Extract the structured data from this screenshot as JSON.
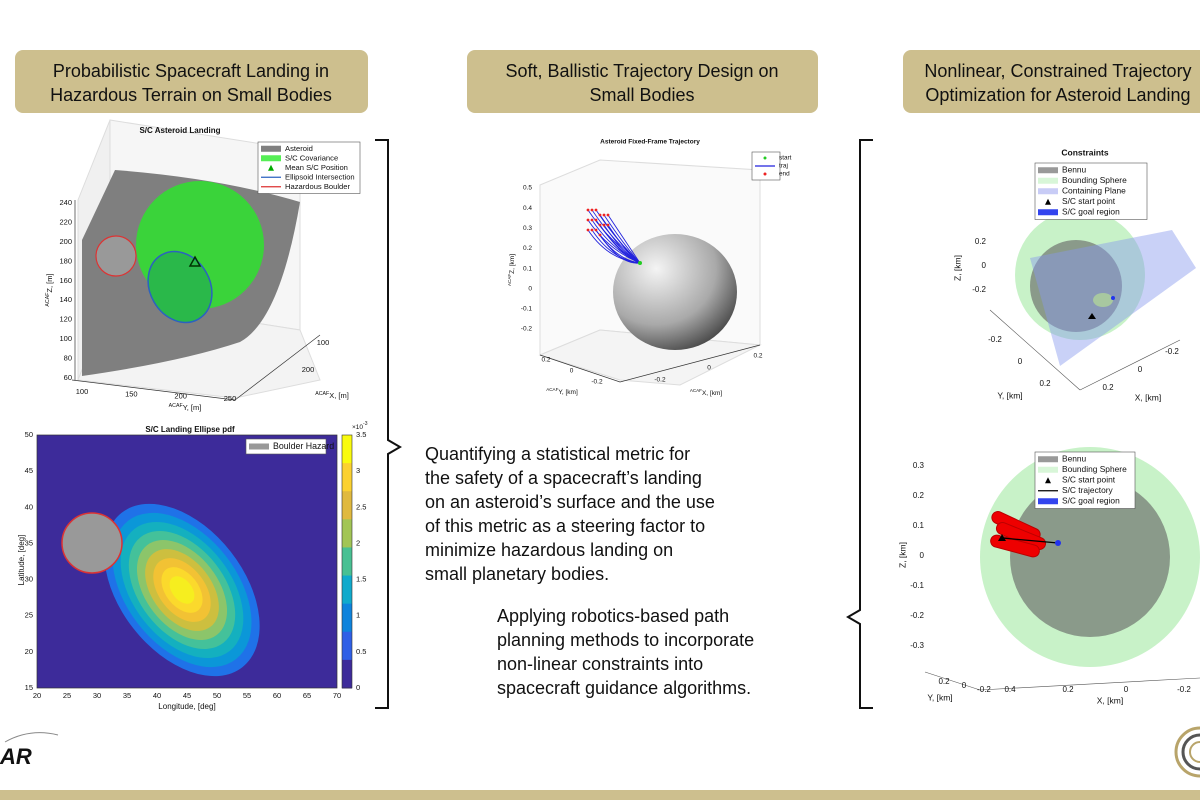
{
  "headers": [
    {
      "lines": [
        "Probabilistic Spacecraft Landing in",
        "Hazardous Terrain on Small Bodies"
      ]
    },
    {
      "lines": [
        "Soft, Ballistic Trajectory Design on",
        "Small Bodies"
      ]
    },
    {
      "lines": [
        "Nonlinear, Constrained Trajectory",
        "Optimization for Asteroid Landing"
      ]
    }
  ],
  "figures": {
    "landing": {
      "title": "S/C Asteroid Landing",
      "legend": [
        "Asteroid",
        "S/C Covariance",
        "Mean S/C Position",
        "Ellipsoid Intersection",
        "Hazardous Boulder"
      ],
      "zticks": [
        60,
        80,
        100,
        120,
        140,
        160,
        180,
        200,
        220,
        240
      ],
      "yticks": [
        100,
        150,
        200,
        250
      ],
      "xticks": [
        100,
        200
      ],
      "zlabel": {
        "sup": "ACAF",
        "text": "Z, [m]"
      },
      "ylabel": {
        "sup": "ACAF",
        "text": "Y, [m]"
      },
      "xlabel": {
        "sup": "ACAF",
        "text": "X, [m]"
      }
    },
    "pdf": {
      "title": "S/C Landing Ellipse pdf",
      "legend": [
        "Boulder Hazard"
      ],
      "xticks": [
        20,
        25,
        30,
        35,
        40,
        45,
        50,
        55,
        60,
        65,
        70
      ],
      "yticks": [
        15,
        20,
        25,
        30,
        35,
        40,
        45,
        50
      ],
      "xlabel": "Longitude, [deg]",
      "ylabel": "Latitude, [deg]",
      "cticks": [
        0,
        0.5,
        1,
        1.5,
        2,
        2.5,
        3,
        3.5
      ],
      "cexp": {
        "base": "×10",
        "exp": "-3"
      }
    },
    "trajectory": {
      "title": "Asteroid Fixed-Frame Trajectory",
      "legend": [
        "start",
        "traj",
        "end"
      ],
      "zticks": [
        0.5,
        0.4,
        0.3,
        0.2,
        0.1,
        0,
        -0.1,
        -0.2
      ],
      "yticks": [
        0.2,
        0,
        -0.2
      ],
      "xticks": [
        -0.2,
        0,
        0.2
      ],
      "zlabel": {
        "sup": "ACAF",
        "text": "Z, [km]"
      },
      "ylabel": {
        "sup": "ACAF",
        "text": "Y, [km]"
      },
      "xlabel": {
        "sup": "ACAF",
        "text": "X, [km]"
      }
    },
    "constraints": {
      "title": "Constraints",
      "legend": [
        "Bennu",
        "Bounding Sphere",
        "Containing Plane",
        "S/C start point",
        "S/C goal region"
      ],
      "zticks": [
        0.2,
        0,
        -0.2
      ],
      "yticks": [
        -0.2,
        0,
        0.2
      ],
      "xticks": [
        0.2,
        0,
        -0.2
      ],
      "zlabel": "Z, [km]",
      "ylabel": "Y, [km]",
      "xlabel": "X, [km]"
    },
    "final": {
      "legend": [
        "Bennu",
        "Bounding Sphere",
        "S/C start point",
        "S/C trajectory",
        "S/C goal region"
      ],
      "zticks": [
        0.3,
        0.2,
        0.1,
        0,
        -0.1,
        -0.2,
        -0.3
      ],
      "yticks": [
        0.2,
        0,
        -0.2
      ],
      "xticks": [
        0.4,
        0.2,
        0,
        -0.2
      ],
      "zlabel": "Z, [km]",
      "ylabel": "Y, [km]",
      "xlabel": "X, [km]"
    }
  },
  "paragraphs": [
    [
      "Quantifying a statistical metric for",
      "the safety of a spacecraft’s landing",
      "on an asteroid’s surface and the use",
      "of this metric as a steering factor to",
      "minimize hazardous landing on",
      "small planetary bodies."
    ],
    [
      "Applying robotics-based path",
      "planning methods to incorporate",
      "non-linear constraints into",
      "spacecraft guidance algorithms."
    ]
  ],
  "logo": "AR"
}
